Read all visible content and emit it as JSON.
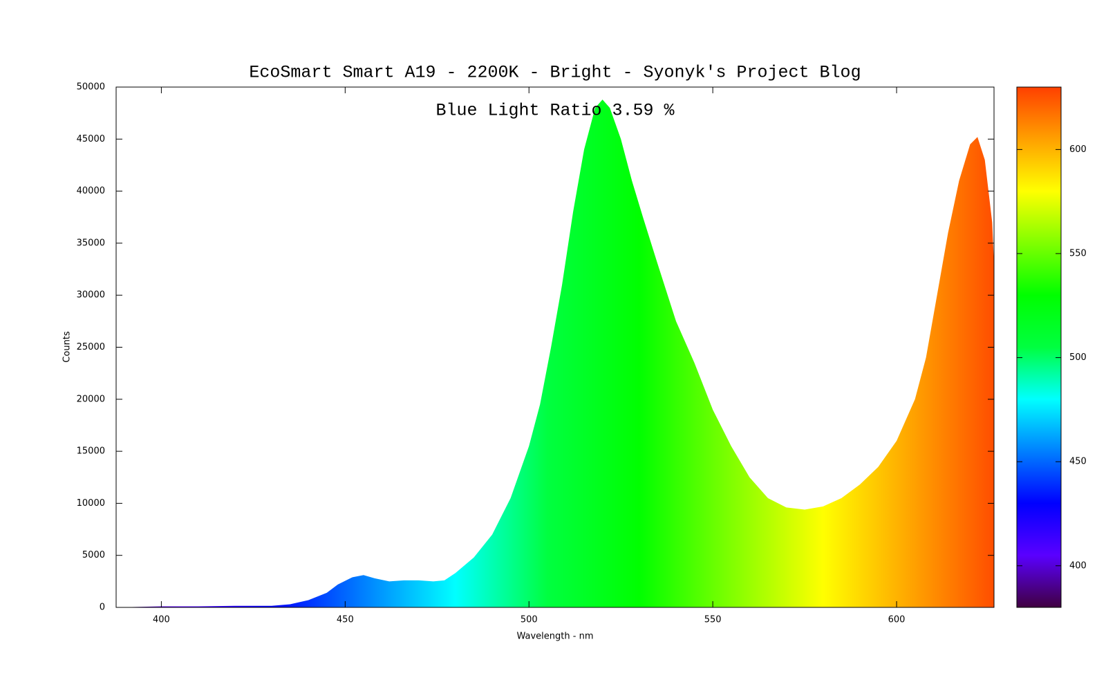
{
  "chart_data": {
    "type": "area",
    "title": "EcoSmart Smart A19 - 2200K - Bright - Syonyk's Project Blog",
    "annotation": "Blue Light Ratio 3.59 %",
    "x_label": "Wavelength - nm",
    "y_label": "Counts",
    "x": [
      388,
      400,
      410,
      420,
      430,
      435,
      440,
      445,
      448,
      452,
      455,
      458,
      462,
      466,
      470,
      474,
      477,
      480,
      485,
      490,
      495,
      500,
      503,
      506,
      509,
      512,
      515,
      518,
      520,
      522,
      525,
      528,
      531,
      535,
      540,
      545,
      550,
      555,
      560,
      565,
      570,
      575,
      580,
      585,
      590,
      595,
      600,
      605,
      608,
      611,
      614,
      617,
      620,
      622,
      624,
      626,
      626.5
    ],
    "values": [
      0,
      100,
      100,
      150,
      150,
      300,
      700,
      1400,
      2200,
      2900,
      3100,
      2800,
      2500,
      2600,
      2600,
      2500,
      2600,
      3300,
      4800,
      7000,
      10500,
      15500,
      19500,
      25000,
      31000,
      38000,
      44000,
      48000,
      48800,
      48000,
      45000,
      41000,
      37500,
      33000,
      27500,
      23500,
      19000,
      15500,
      12500,
      10500,
      9600,
      9400,
      9700,
      10500,
      11800,
      13500,
      16000,
      20000,
      24000,
      30000,
      36000,
      41000,
      44500,
      45200,
      43000,
      37000,
      33000
    ],
    "xlim": [
      387.7,
      626.5
    ],
    "ylim": [
      0,
      50000
    ],
    "xticks": [
      400,
      450,
      500,
      550,
      600
    ],
    "yticks": [
      0,
      5000,
      10000,
      15000,
      20000,
      25000,
      30000,
      35000,
      40000,
      45000,
      50000
    ],
    "zlim": [
      380,
      630
    ],
    "zticks": [
      400,
      450,
      500,
      550,
      600
    ],
    "colormap": [
      "#400040",
      "#5a00ff",
      "#0000ff",
      "#0080ff",
      "#00ffff",
      "#00ff40",
      "#00ff00",
      "#80ff00",
      "#ffff00",
      "#ffa000",
      "#ff4000"
    ]
  }
}
